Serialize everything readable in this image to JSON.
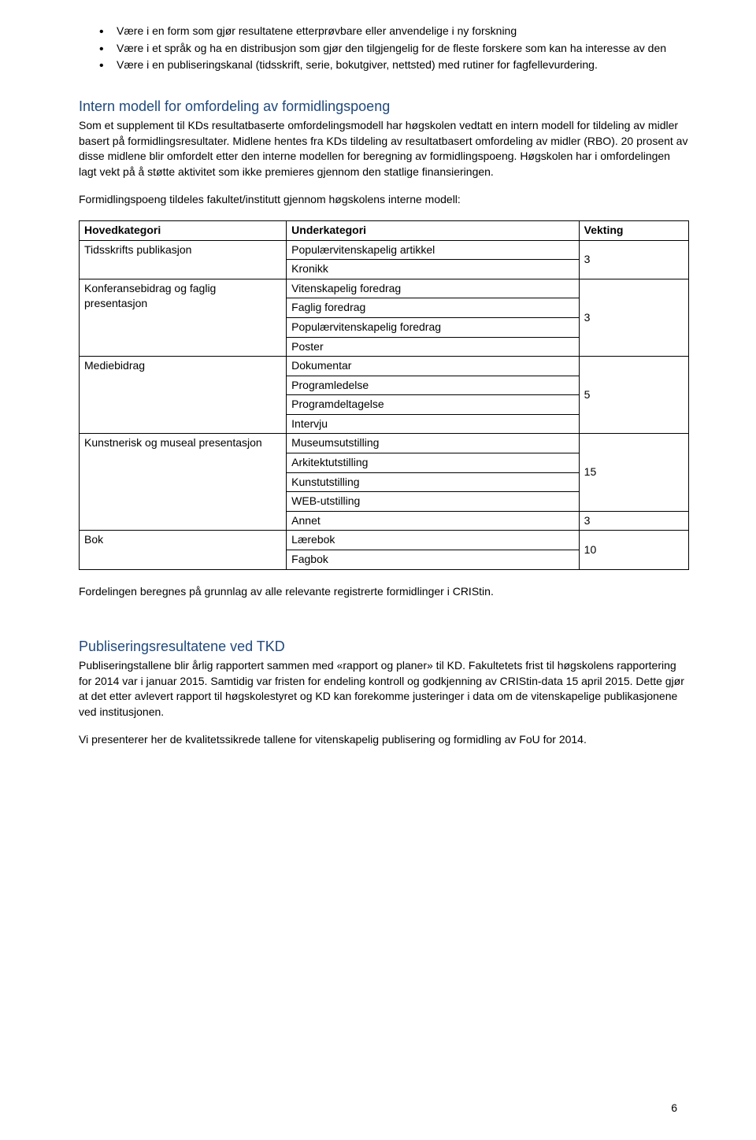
{
  "bullets": [
    "Være i en form som gjør resultatene etterprøvbare eller anvendelige i ny forskning",
    "Være i et språk og ha en distribusjon som gjør den tilgjengelig for de fleste forskere som kan ha interesse av den",
    "Være i en publiseringskanal (tidsskrift, serie, bokutgiver, nettsted) med rutiner for fagfellevurdering."
  ],
  "section1": {
    "heading": "Intern modell for omfordeling av formidlingspoeng",
    "para1": "Som et supplement til KDs resultatbaserte omfordelingsmodell har høgskolen vedtatt en intern modell for tildeling av midler basert på formidlingsresultater. Midlene hentes fra KDs tildeling av resultatbasert omfordeling av midler (RBO). 20 prosent av disse midlene blir omfordelt etter den interne modellen for beregning av formidlingspoeng. Høgskolen har i omfordelingen lagt vekt på å støtte aktivitet som ikke premieres gjennom den statlige finansieringen.",
    "para2": "Formidlingspoeng tildeles fakultet/institutt gjennom høgskolens interne modell:"
  },
  "table": {
    "headers": [
      "Hovedkategori",
      "Underkategori",
      "Vekting"
    ],
    "c1": "Tidsskrifts publikasjon",
    "c1s": [
      "Populærvitenskapelig artikkel",
      "Kronikk"
    ],
    "c1w": "3",
    "c2": "Konferansebidrag og faglig presentasjon",
    "c2s": [
      "Vitenskapelig foredrag",
      "Faglig foredrag",
      "Populærvitenskapelig foredrag",
      "Poster"
    ],
    "c2w": "3",
    "c3": "Mediebidrag",
    "c3s": [
      "Dokumentar",
      "Programledelse",
      "Programdeltagelse",
      "Intervju"
    ],
    "c3w": "5",
    "c4": "Kunstnerisk og museal presentasjon",
    "c4s": [
      "Museumsutstilling",
      "Arkitektutstilling",
      "Kunstutstilling",
      "WEB-utstilling",
      "Annet"
    ],
    "c4w": "15",
    "c4w2": "3",
    "c5": "Bok",
    "c5s": [
      "Lærebok",
      "Fagbok"
    ],
    "c5w": "10"
  },
  "afterTable": "Fordelingen beregnes på grunnlag av alle relevante registrerte formidlinger i CRIStin.",
  "section2": {
    "heading": "Publiseringsresultatene ved TKD",
    "para1": "Publiseringstallene blir årlig rapportert sammen med «rapport og planer» til KD. Fakultetets frist til høgskolens rapportering for 2014 var i januar 2015. Samtidig var fristen for endeling kontroll og godkjenning av CRIStin-data 15 april 2015. Dette gjør at det etter avlevert rapport til høgskolestyret og KD kan forekomme justeringer i data om de vitenskapelige publikasjonene ved institusjonen.",
    "para2": "Vi presenterer her de kvalitetssikrede tallene for vitenskapelig publisering og formidling av FoU for 2014."
  },
  "pageNumber": "6"
}
